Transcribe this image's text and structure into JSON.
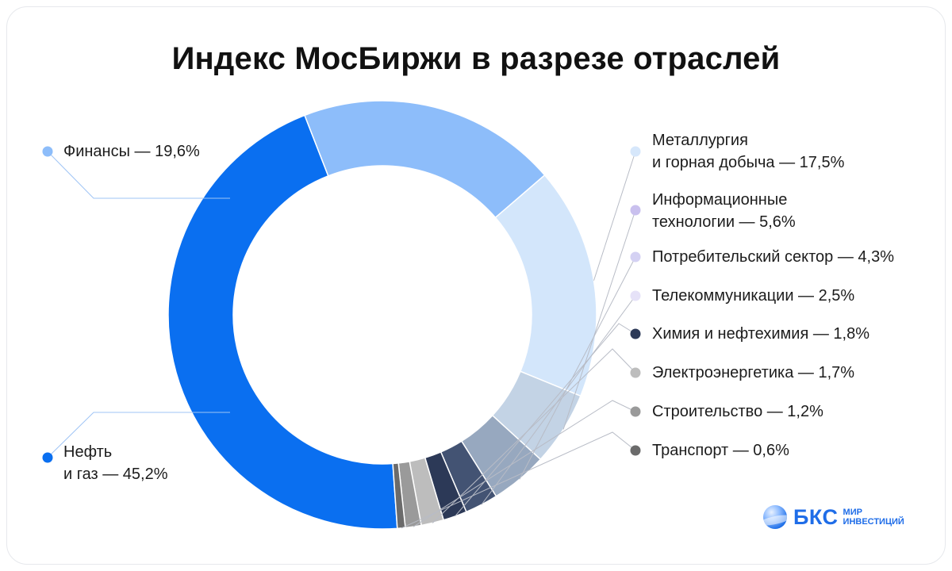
{
  "title": "Индекс МосБиржи в разрезе отраслей",
  "chart_data": {
    "type": "pie",
    "title": "Индекс МосБиржи в разрезе отраслей",
    "unit": "%",
    "slices": [
      {
        "line1": "Нефть",
        "line2": "и газ — 45,2%",
        "value": 45.2,
        "color": "#0a6ff0"
      },
      {
        "line1": "Финансы — 19,6%",
        "line2": "",
        "value": 19.6,
        "color": "#8dbdfa"
      },
      {
        "line1": "Металлургия",
        "line2": "и горная добыча — 17,5%",
        "value": 17.5,
        "color": "#d3e6fb"
      },
      {
        "line1": "Информационные",
        "line2": "технологии — 5,6%",
        "value": 5.6,
        "color": "#c3d3e5"
      },
      {
        "line1": "Потребительский сектор — 4,3%",
        "line2": "",
        "value": 4.3,
        "color": "#97a8bf"
      },
      {
        "line1": "Телекоммуникации — 2,5%",
        "line2": "",
        "value": 2.5,
        "color": "#435373"
      },
      {
        "line1": "Химия и нефтехимия — 1,8%",
        "line2": "",
        "value": 1.8,
        "color": "#2c3957"
      },
      {
        "line1": "Электроэнергетика — 1,7%",
        "line2": "",
        "value": 1.7,
        "color": "#bdbdbd"
      },
      {
        "line1": "Строительство — 1,2%",
        "line2": "",
        "value": 1.2,
        "color": "#9a9a9a"
      },
      {
        "line1": "Транспорт — 0,6%",
        "line2": "",
        "value": 0.6,
        "color": "#6b6b6b"
      }
    ],
    "legend_dot_colors": [
      "#0a6ff0",
      "#8dbdfa",
      "#d6e7fb",
      "#c9c0ee",
      "#d4d1f3",
      "#e6e2f8",
      "#2c3957",
      "#bdbdbd",
      "#9a9a9a",
      "#6b6b6b"
    ]
  },
  "logo": {
    "name": "БКС",
    "sub1": "МИР",
    "sub2": "ИНВЕСТИЦИЙ"
  }
}
